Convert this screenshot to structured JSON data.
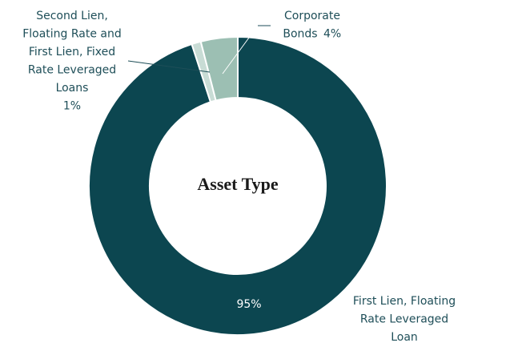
{
  "chart_data": {
    "type": "pie",
    "title": "Asset Type",
    "categories": [
      [
        "First Lien, Floating",
        "Rate Leveraged",
        "Loan"
      ],
      [
        "Second Lien,",
        "Floating Rate and",
        "First Lien, Fixed",
        "Rate Leveraged",
        "Loans"
      ],
      [
        "Corporate",
        "Bonds"
      ]
    ],
    "values": [
      95,
      1,
      4
    ],
    "value_labels": [
      "95%",
      "1%",
      "4%"
    ],
    "colors": [
      "#0c4650",
      "#c8dcd5",
      "#9cbfb3"
    ]
  }
}
